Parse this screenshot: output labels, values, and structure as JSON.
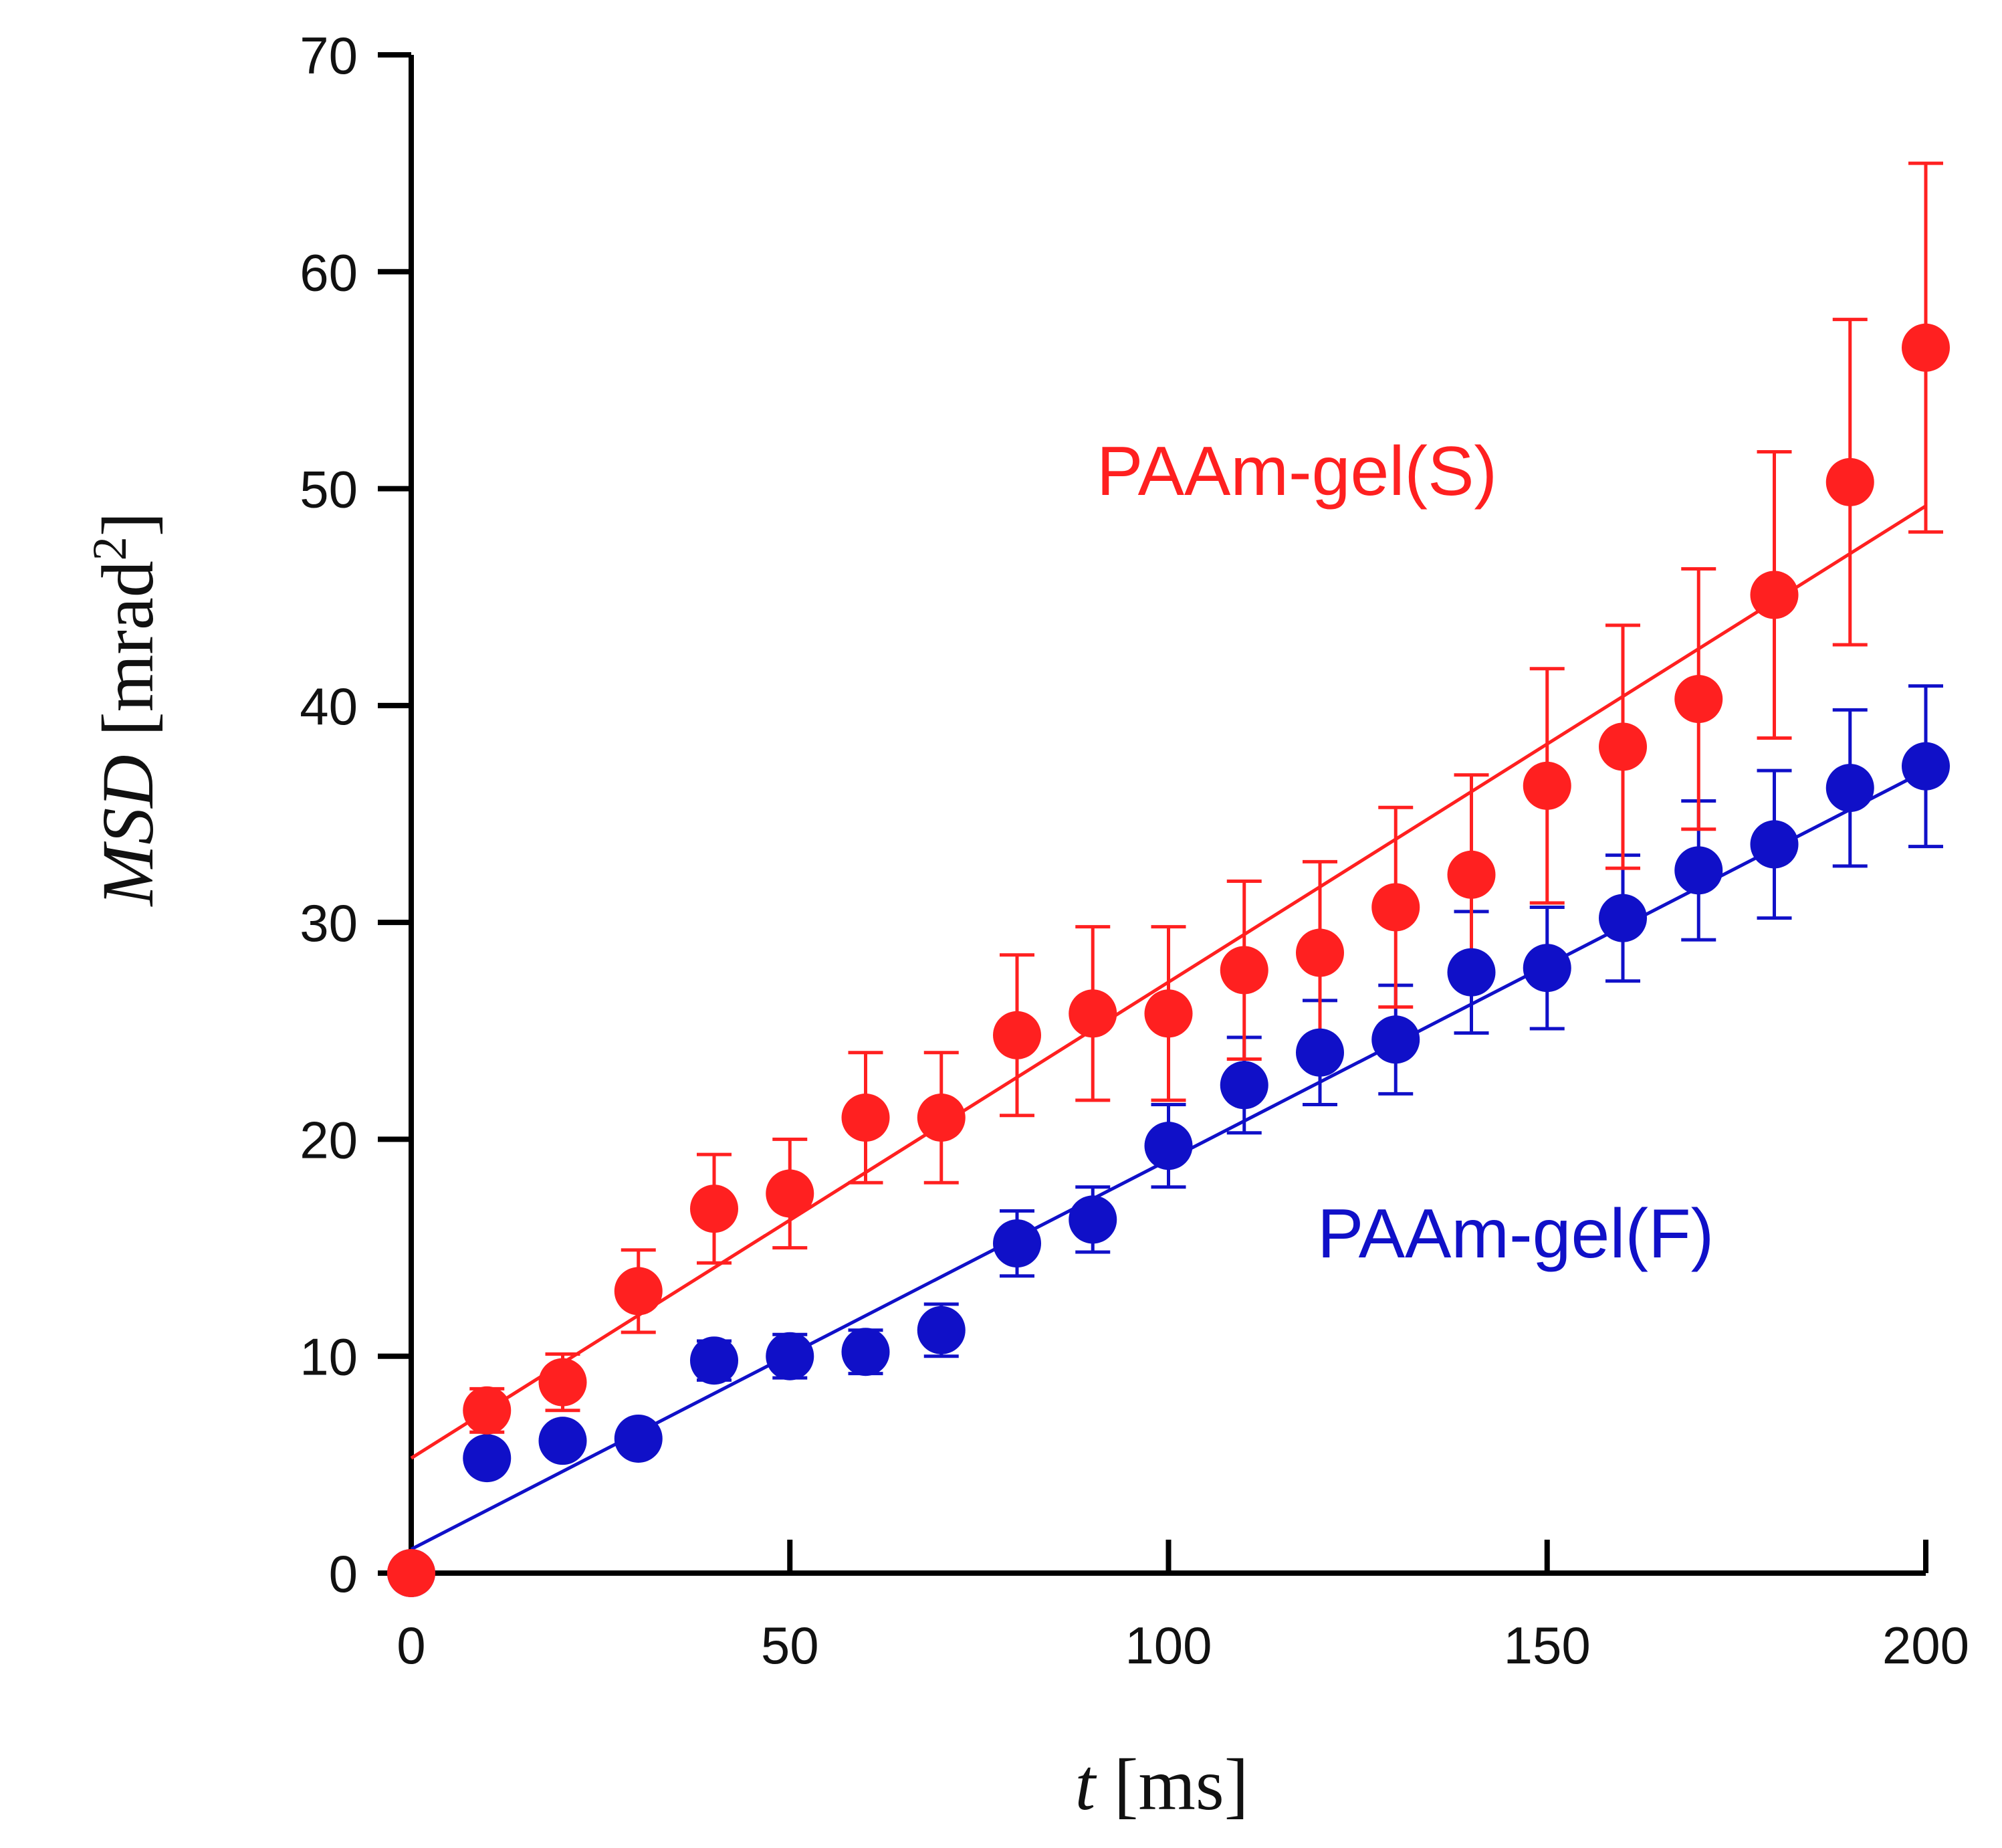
{
  "chart_data": {
    "type": "scatter",
    "title": "",
    "xlabel": {
      "var": "t",
      "unit": "[ms]"
    },
    "ylabel": {
      "var": "MSD",
      "unit": "[mrad",
      "sup": "2",
      "close": "]"
    },
    "xlim": [
      0,
      200
    ],
    "ylim": [
      0,
      70
    ],
    "xticks": [
      0,
      50,
      100,
      150,
      200
    ],
    "yticks": [
      0,
      10,
      20,
      30,
      40,
      50,
      60,
      70
    ],
    "grid": false,
    "series": [
      {
        "name": "PAAm-gel(S)",
        "color": "#ff2020",
        "x": [
          0,
          10,
          20,
          30,
          40,
          50,
          60,
          70,
          80,
          90,
          100,
          110,
          120,
          130,
          140,
          150,
          160,
          170,
          180,
          190,
          200
        ],
        "y": [
          0,
          7.5,
          8.8,
          13.0,
          16.8,
          17.5,
          21.0,
          21.0,
          24.8,
          25.8,
          25.8,
          27.8,
          28.6,
          30.7,
          32.2,
          36.3,
          38.1,
          40.3,
          45.1,
          50.3,
          56.5
        ],
        "err": [
          0,
          1.0,
          1.3,
          1.9,
          2.5,
          2.5,
          3.0,
          3.0,
          3.7,
          4.0,
          4.0,
          4.1,
          4.2,
          4.6,
          4.6,
          5.4,
          5.6,
          6.0,
          6.6,
          7.5,
          8.5
        ],
        "fit": {
          "x": [
            0,
            200
          ],
          "y": [
            5.3,
            49.2
          ]
        }
      },
      {
        "name": "PAAm-gel(F)",
        "color": "#1010c8",
        "x": [
          0,
          10,
          20,
          30,
          40,
          50,
          60,
          70,
          80,
          90,
          100,
          110,
          120,
          130,
          140,
          150,
          160,
          170,
          180,
          190,
          200
        ],
        "y": [
          0,
          5.3,
          6.1,
          6.2,
          9.8,
          10.0,
          10.2,
          11.2,
          15.2,
          16.3,
          19.7,
          22.5,
          24.0,
          24.6,
          27.7,
          27.9,
          30.2,
          32.4,
          33.6,
          36.2,
          37.2
        ],
        "err": [
          0,
          0.5,
          0.6,
          0.6,
          0.9,
          1.0,
          1.0,
          1.2,
          1.5,
          1.5,
          1.9,
          2.2,
          2.4,
          2.5,
          2.8,
          2.8,
          2.9,
          3.2,
          3.4,
          3.6,
          3.7
        ],
        "fit": {
          "x": [
            0,
            200
          ],
          "y": [
            1.1,
            37.0
          ]
        }
      }
    ]
  }
}
